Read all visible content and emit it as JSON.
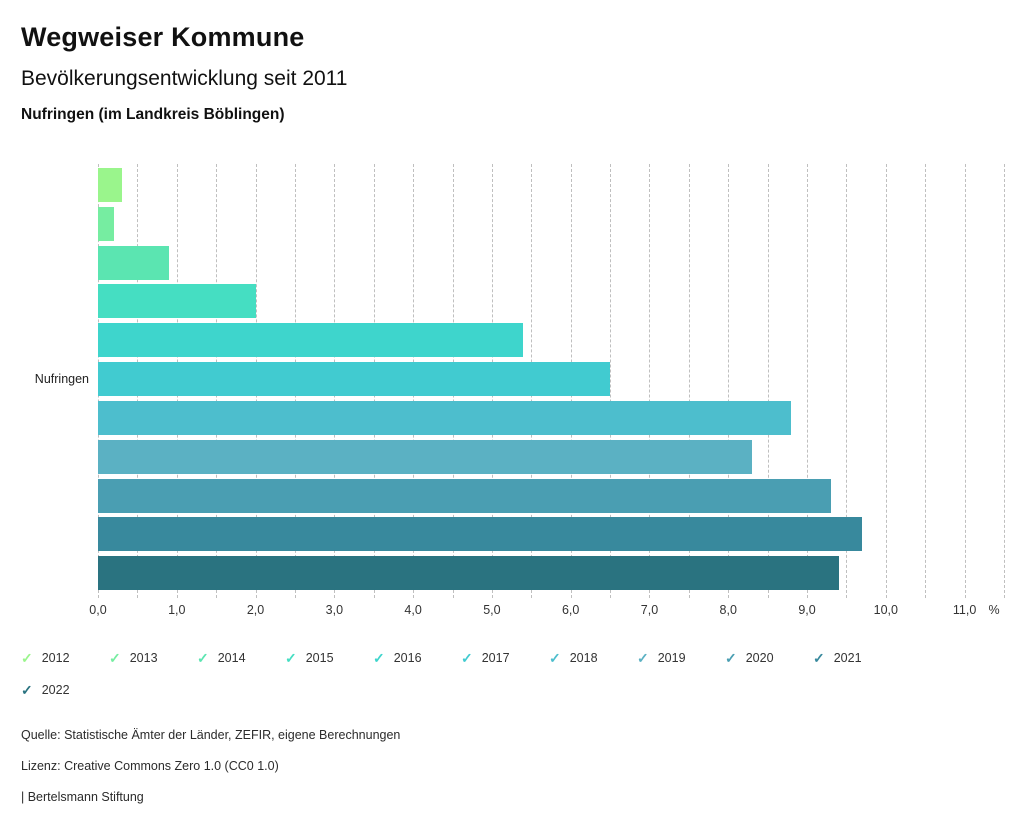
{
  "header": {
    "title": "Wegweiser Kommune",
    "subtitle": "Bevölkerungsentwicklung seit 2011",
    "location": "Nufringen (im Landkreis Böblingen)"
  },
  "chart_data": {
    "type": "bar",
    "orientation": "horizontal",
    "title": "Bevölkerungsentwicklung seit 2011",
    "group_label": "Nufringen",
    "unit": "%",
    "series": [
      {
        "year": "2012",
        "value": 0.3,
        "color": "#9af58c"
      },
      {
        "year": "2013",
        "value": 0.2,
        "color": "#76eda1"
      },
      {
        "year": "2014",
        "value": 0.9,
        "color": "#5be5b1"
      },
      {
        "year": "2015",
        "value": 2.0,
        "color": "#45dec2"
      },
      {
        "year": "2016",
        "value": 5.4,
        "color": "#3ed5cc"
      },
      {
        "year": "2017",
        "value": 6.5,
        "color": "#41cbd0"
      },
      {
        "year": "2018",
        "value": 8.8,
        "color": "#4dbecd"
      },
      {
        "year": "2019",
        "value": 8.3,
        "color": "#5bb1c3"
      },
      {
        "year": "2020",
        "value": 9.3,
        "color": "#4a9eb2"
      },
      {
        "year": "2021",
        "value": 9.7,
        "color": "#38899d"
      },
      {
        "year": "2022",
        "value": 9.4,
        "color": "#2a7380"
      }
    ],
    "x_ticks": [
      "0,0",
      "1,0",
      "2,0",
      "3,0",
      "4,0",
      "5,0",
      "6,0",
      "7,0",
      "8,0",
      "9,0",
      "10,0",
      "11,0"
    ],
    "x_axis_suffix": "%",
    "xlim": [
      0,
      11.5
    ],
    "gridline_step": 0.5,
    "grid": "dashed-vertical",
    "legend_position": "bottom"
  },
  "icons": {
    "check_glyph": "✓"
  },
  "footer": {
    "source": "Quelle: Statistische Ämter der Länder, ZEFIR, eigene Berechnungen",
    "license": "Lizenz: Creative Commons Zero 1.0 (CC0 1.0)",
    "attribution": "| Bertelsmann Stiftung"
  }
}
